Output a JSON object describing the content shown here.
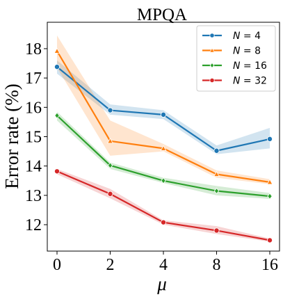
{
  "chart_data": {
    "type": "line",
    "title": "MPQA",
    "xlabel": "μ",
    "ylabel": "Error rate (%)",
    "x": [
      "0",
      "2",
      "4",
      "8",
      "16"
    ],
    "ylim": [
      11.1,
      18.9
    ],
    "yticks": [
      12,
      13,
      14,
      15,
      16,
      17,
      18
    ],
    "grid": false,
    "legend_position": "top-right",
    "series": [
      {
        "name": "N = 4",
        "color": "#1f77b4",
        "marker": "circle",
        "values": [
          17.38,
          15.9,
          15.75,
          14.52,
          14.92
        ],
        "band_low": [
          17.15,
          15.75,
          15.6,
          14.4,
          14.6
        ],
        "band_high": [
          17.6,
          16.1,
          15.9,
          14.7,
          15.3
        ]
      },
      {
        "name": "N = 8",
        "color": "#ff7f0e",
        "marker": "triangle",
        "values": [
          17.92,
          14.85,
          14.6,
          13.72,
          13.45
        ],
        "band_low": [
          17.35,
          14.35,
          14.5,
          13.6,
          13.38
        ],
        "band_high": [
          18.45,
          15.55,
          14.75,
          13.85,
          13.55
        ]
      },
      {
        "name": "N = 16",
        "color": "#2ca02c",
        "marker": "diamond",
        "values": [
          15.72,
          14.02,
          13.5,
          13.15,
          12.97
        ],
        "band_low": [
          15.55,
          13.9,
          13.42,
          13.0,
          12.88
        ],
        "band_high": [
          15.85,
          14.12,
          13.6,
          13.32,
          13.08
        ]
      },
      {
        "name": "N = 32",
        "color": "#d62728",
        "marker": "circle",
        "values": [
          13.82,
          13.05,
          12.08,
          11.8,
          11.47
        ],
        "band_low": [
          13.72,
          12.9,
          12.0,
          11.68,
          11.42
        ],
        "band_high": [
          13.9,
          13.22,
          12.15,
          11.95,
          11.53
        ]
      }
    ]
  }
}
